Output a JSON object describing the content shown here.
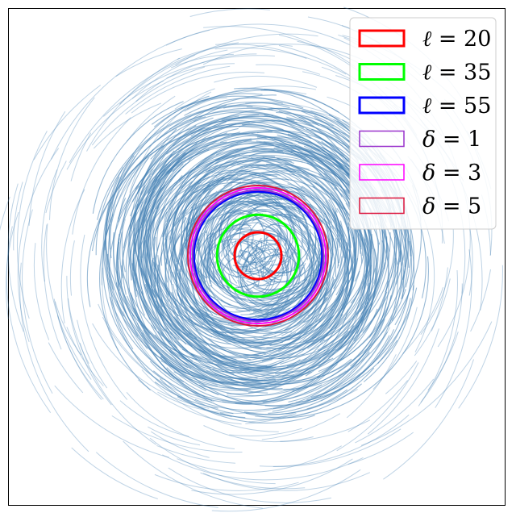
{
  "chart_data": {
    "type": "scatter",
    "description_note": "",
    "axes": {
      "xticks": [],
      "yticks": [],
      "grid": false,
      "frame": true
    },
    "background_arcs": {
      "color": "#4682b4"
    },
    "rings": [
      {
        "label": "ℓ = 20",
        "param": "ℓ",
        "value": "20",
        "color": "#ff0000",
        "relative_radius": 20
      },
      {
        "label": "ℓ = 35",
        "param": "ℓ",
        "value": "35",
        "color": "#00ff00",
        "relative_radius": 35
      },
      {
        "label": "ℓ = 55",
        "param": "ℓ",
        "value": "55",
        "color": "#0000ff",
        "relative_radius": 55
      },
      {
        "label": "δ = 1",
        "param": "δ",
        "value": "1",
        "color": "#9932cc",
        "relative_radius": 56
      },
      {
        "label": "δ = 3",
        "param": "δ",
        "value": "3",
        "color": "#ff00ff",
        "relative_radius": 58
      },
      {
        "label": "δ = 5",
        "param": "δ",
        "value": "5",
        "color": "#dc143c",
        "relative_radius": 60
      }
    ],
    "legend": {
      "placement": "top-right",
      "entries": [
        {
          "symbol": "ℓ",
          "eq": " = ",
          "value": "20",
          "color": "#ff0000"
        },
        {
          "symbol": "ℓ",
          "eq": " = ",
          "value": "35",
          "color": "#00ff00"
        },
        {
          "symbol": "ℓ",
          "eq": " = ",
          "value": "55",
          "color": "#0000ff"
        },
        {
          "symbol": "δ",
          "eq": " = ",
          "value": "1",
          "color": "#9932cc"
        },
        {
          "symbol": "δ",
          "eq": " = ",
          "value": "3",
          "color": "#ff00ff"
        },
        {
          "symbol": "δ",
          "eq": " = ",
          "value": "5",
          "color": "#dc143c"
        }
      ]
    }
  }
}
